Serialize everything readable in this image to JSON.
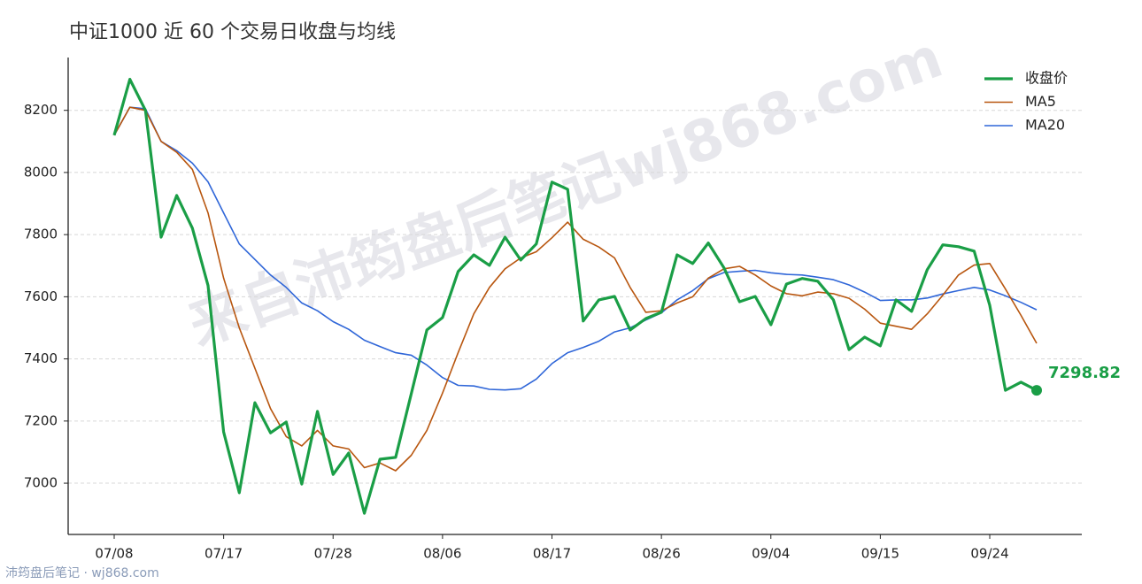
{
  "chart_data": {
    "type": "line",
    "title": "中证1000 近 60 个交易日收盘与均线",
    "categories": [
      "07/08",
      null,
      null,
      null,
      null,
      null,
      null,
      "07/17",
      null,
      null,
      null,
      null,
      null,
      null,
      "07/28",
      null,
      null,
      null,
      null,
      null,
      null,
      "08/06",
      null,
      null,
      null,
      null,
      null,
      null,
      "08/17",
      null,
      null,
      null,
      null,
      null,
      null,
      "08/26",
      null,
      null,
      null,
      null,
      null,
      null,
      "09/04",
      null,
      null,
      null,
      null,
      null,
      null,
      "09/15",
      null,
      null,
      null,
      null,
      null,
      null,
      "09/24",
      null,
      null,
      null
    ],
    "series": [
      {
        "name": "收盘价",
        "color": "#1a9e46",
        "values": [
          8120,
          8300,
          8200,
          7792,
          7926,
          7821,
          7636,
          7165,
          6969,
          7259,
          7162,
          7197,
          6997,
          7231,
          7028,
          7097,
          6903,
          7077,
          7083,
          7288,
          7493,
          7533,
          7681,
          7735,
          7701,
          7792,
          7718,
          7770,
          7969,
          7946,
          7522,
          7590,
          7601,
          7493,
          7530,
          7550,
          7735,
          7707,
          7773,
          7693,
          7584,
          7601,
          7510,
          7641,
          7659,
          7650,
          7590,
          7430,
          7470,
          7442,
          7590,
          7553,
          7687,
          7767,
          7761,
          7747,
          7573,
          7299,
          7325,
          7298.82
        ]
      },
      {
        "name": "MA5",
        "color": "#b8560f",
        "values": [
          8120,
          8210,
          8200,
          8100,
          8065,
          8010,
          7870,
          7660,
          7500,
          7370,
          7240,
          7150,
          7120,
          7170,
          7120,
          7110,
          7050,
          7065,
          7040,
          7090,
          7170,
          7290,
          7420,
          7545,
          7630,
          7690,
          7725,
          7745,
          7790,
          7840,
          7785,
          7760,
          7725,
          7630,
          7550,
          7555,
          7580,
          7600,
          7660,
          7690,
          7698,
          7670,
          7635,
          7610,
          7603,
          7615,
          7610,
          7595,
          7560,
          7515,
          7505,
          7495,
          7545,
          7605,
          7670,
          7702,
          7707,
          7625,
          7540,
          7450
        ]
      },
      {
        "name": "MA20",
        "color": "#2f66d8",
        "values": [
          8120,
          8210,
          8205,
          8100,
          8070,
          8030,
          7970,
          7870,
          7770,
          7720,
          7670,
          7630,
          7580,
          7555,
          7520,
          7495,
          7460,
          7440,
          7420,
          7412,
          7380,
          7340,
          7315,
          7313,
          7302,
          7300,
          7304,
          7335,
          7385,
          7420,
          7437,
          7457,
          7487,
          7500,
          7525,
          7548,
          7590,
          7620,
          7658,
          7678,
          7682,
          7685,
          7677,
          7672,
          7670,
          7663,
          7655,
          7638,
          7615,
          7588,
          7590,
          7590,
          7596,
          7609,
          7620,
          7630,
          7622,
          7603,
          7582,
          7558
        ]
      }
    ],
    "ylim": [
      6835,
      8370
    ],
    "yticks": [
      7000,
      7200,
      7400,
      7600,
      7800,
      8000,
      8200
    ],
    "grid": true,
    "legend": "upper right"
  },
  "watermark": "来自沛筠盘后笔记wj868.com",
  "footer": "沛筠盘后笔记 · wj868.com"
}
